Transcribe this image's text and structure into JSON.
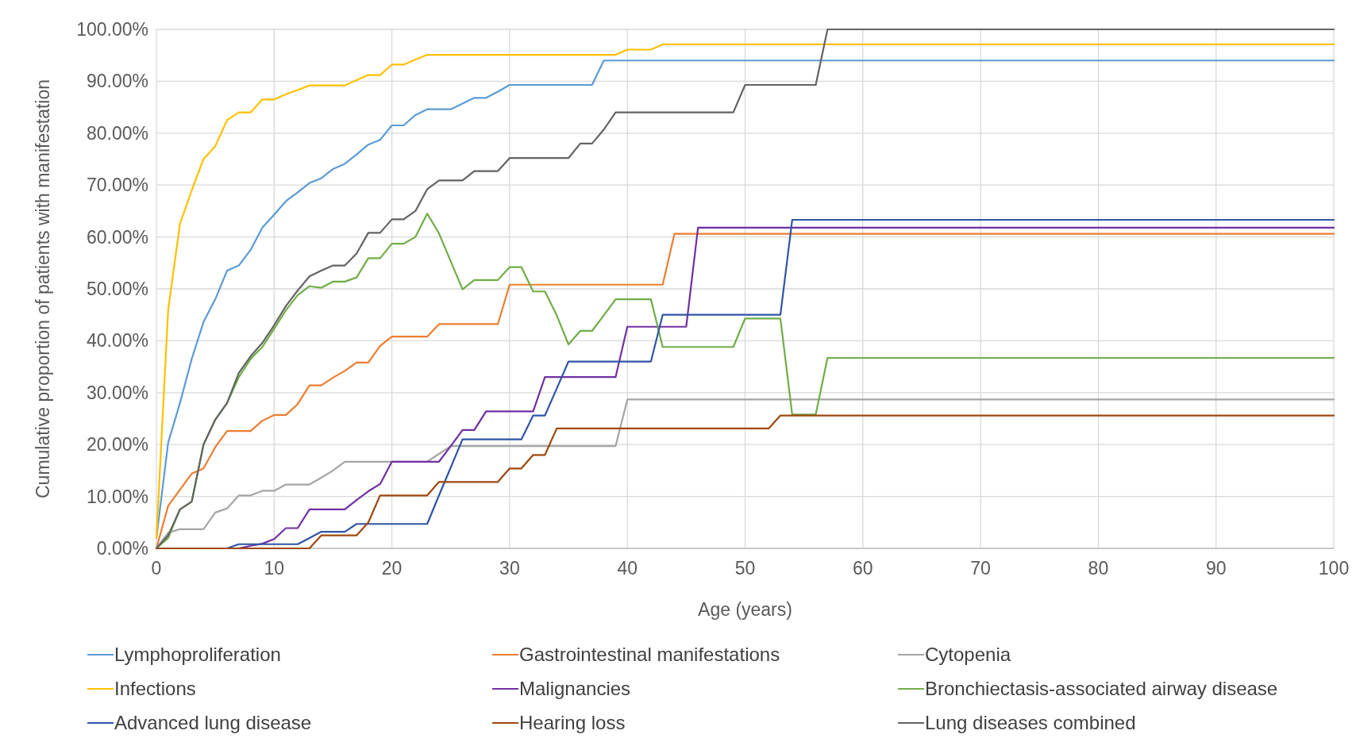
{
  "chart_data": {
    "type": "line",
    "xlabel": "Age (years)",
    "ylabel": "Cumulative proportion of patients with manifestation",
    "x": [
      0,
      1,
      2,
      3,
      4,
      5,
      6,
      7,
      8,
      9,
      10,
      11,
      12,
      13,
      14,
      15,
      16,
      17,
      18,
      19,
      20,
      21,
      22,
      23,
      24,
      25,
      26,
      27,
      28,
      29,
      30,
      31,
      32,
      33,
      34,
      35,
      36,
      37,
      38,
      39,
      40,
      41,
      42,
      43,
      44,
      45,
      46,
      47,
      48,
      49,
      50,
      51,
      52,
      53,
      54,
      55,
      56,
      57,
      100
    ],
    "xlim": [
      0,
      100
    ],
    "xticks": [
      0,
      10,
      20,
      30,
      40,
      50,
      60,
      70,
      80,
      90,
      100
    ],
    "ylim": [
      0,
      100
    ],
    "yticks": [
      {
        "value": 0,
        "label": "0.00%"
      },
      {
        "value": 10,
        "label": "10.00%"
      },
      {
        "value": 20,
        "label": "20.00%"
      },
      {
        "value": 30,
        "label": "30.00%"
      },
      {
        "value": 40,
        "label": "40.00%"
      },
      {
        "value": 50,
        "label": "50.00%"
      },
      {
        "value": 60,
        "label": "60.00%"
      },
      {
        "value": 70,
        "label": "70.00%"
      },
      {
        "value": 80,
        "label": "80.00%"
      },
      {
        "value": 90,
        "label": "90.00%"
      },
      {
        "value": 100,
        "label": "100.00%"
      }
    ],
    "grid": true,
    "legend": "bottom",
    "marker": "none",
    "line_style": "solid",
    "series": [
      {
        "name": "Lymphoproliferation",
        "color": "#5b9bd5",
        "values": [
          2,
          20.4,
          28,
          36.5,
          43.6,
          48,
          53.5,
          54.5,
          57.5,
          61.8,
          64.3,
          66.9,
          68.6,
          70.4,
          71.3,
          73.1,
          74.1,
          75.9,
          77.8,
          78.7,
          81.5,
          81.5,
          83.5,
          84.6,
          84.6,
          84.6,
          85.7,
          86.8,
          86.8,
          88,
          89.3,
          89.3,
          89.3,
          89.3,
          89.3,
          89.3,
          89.3,
          89.3,
          94,
          94,
          94,
          94,
          94,
          94,
          94,
          94,
          94,
          94,
          94,
          94,
          94,
          94,
          94,
          94,
          94,
          94,
          94,
          94,
          94
        ]
      },
      {
        "name": "Gastrointestinal manifestations",
        "color": "#ed7d31",
        "values": [
          0,
          8.2,
          11.3,
          14.4,
          15.4,
          19.5,
          22.6,
          22.6,
          22.6,
          24.6,
          25.7,
          25.7,
          27.8,
          31.4,
          31.4,
          32.9,
          34.2,
          35.8,
          35.8,
          39,
          40.8,
          40.8,
          40.8,
          40.8,
          43.2,
          43.2,
          43.2,
          43.2,
          43.2,
          43.2,
          50.8,
          50.8,
          50.8,
          50.8,
          50.8,
          50.8,
          50.8,
          50.8,
          50.8,
          50.8,
          50.8,
          50.8,
          50.8,
          50.8,
          60.6,
          60.6,
          60.6,
          60.6,
          60.6,
          60.6,
          60.6,
          60.6,
          60.6,
          60.6,
          60.6,
          60.6,
          60.6,
          60.6,
          60.6
        ]
      },
      {
        "name": "Cytopenia",
        "color": "#a5a5a5",
        "values": [
          0,
          3,
          3.7,
          3.7,
          3.7,
          6.9,
          7.7,
          10.2,
          10.2,
          11.1,
          11.1,
          12.3,
          12.3,
          12.3,
          13.6,
          15,
          16.7,
          16.7,
          16.7,
          16.7,
          16.7,
          16.7,
          16.7,
          16.7,
          18.2,
          19.7,
          19.7,
          19.7,
          19.7,
          19.7,
          19.7,
          19.7,
          19.7,
          19.7,
          19.7,
          19.7,
          19.7,
          19.7,
          19.7,
          19.7,
          28.7,
          28.7,
          28.7,
          28.7,
          28.7,
          28.7,
          28.7,
          28.7,
          28.7,
          28.7,
          28.7,
          28.7,
          28.7,
          28.7,
          28.7,
          28.7,
          28.7,
          28.7,
          28.7
        ]
      },
      {
        "name": "Infections",
        "color": "#ffc000",
        "values": [
          2,
          46,
          62.5,
          69,
          75,
          77.5,
          82.5,
          84,
          84,
          86.5,
          86.5,
          87.5,
          88.3,
          89.2,
          89.2,
          89.2,
          89.2,
          90.2,
          91.2,
          91.2,
          93.2,
          93.2,
          94.2,
          95.1,
          95.1,
          95.1,
          95.1,
          95.1,
          95.1,
          95.1,
          95.1,
          95.1,
          95.1,
          95.1,
          95.1,
          95.1,
          95.1,
          95.1,
          95.1,
          95.1,
          96.1,
          96.1,
          96.1,
          97.1,
          97.1,
          97.1,
          97.1,
          97.1,
          97.1,
          97.1,
          97.1,
          97.1,
          97.1,
          97.1,
          97.1,
          97.1,
          97.1,
          97.1,
          97.1
        ]
      },
      {
        "name": "Malignancies",
        "color": "#7030a0",
        "values": [
          null,
          null,
          null,
          null,
          null,
          null,
          0,
          0,
          0.5,
          0.9,
          1.8,
          3.9,
          3.9,
          7.5,
          7.5,
          7.5,
          7.5,
          9.3,
          11,
          12.4,
          16.7,
          16.7,
          16.7,
          16.7,
          16.7,
          19.7,
          22.8,
          22.8,
          26.4,
          26.4,
          26.4,
          26.4,
          26.4,
          33,
          33,
          33,
          33,
          33,
          33,
          33,
          42.7,
          42.7,
          42.7,
          42.7,
          42.7,
          42.7,
          61.8,
          61.8,
          61.8,
          61.8,
          61.8,
          61.8,
          61.8,
          61.8,
          61.8,
          61.8,
          61.8,
          61.8,
          61.8
        ]
      },
      {
        "name": "Bronchiectasis-associated airway disease",
        "color": "#70ad47",
        "values": [
          0,
          2,
          7.5,
          9,
          20,
          24.8,
          28,
          33,
          36.5,
          38.8,
          42.3,
          45.9,
          48.8,
          50.5,
          50.2,
          51.4,
          51.4,
          52.2,
          55.9,
          55.9,
          58.7,
          58.7,
          60,
          64.5,
          60.7,
          55.3,
          49.9,
          51.7,
          51.7,
          51.7,
          54.2,
          54.2,
          49.5,
          49.5,
          44.9,
          39.3,
          41.9,
          41.9,
          44.9,
          48,
          48,
          48,
          48,
          38.8,
          38.8,
          38.8,
          38.8,
          38.8,
          38.8,
          38.8,
          44.3,
          44.3,
          44.3,
          44.3,
          25.8,
          25.8,
          25.8,
          36.7,
          36.7
        ]
      },
      {
        "name": "Advanced lung disease",
        "color": "#2f55a4",
        "values": [
          null,
          null,
          null,
          null,
          null,
          0,
          0,
          0.8,
          0.8,
          0.8,
          0.8,
          0.8,
          0.8,
          2,
          3.2,
          3.2,
          3.2,
          4.7,
          4.7,
          4.7,
          4.7,
          4.7,
          4.7,
          4.7,
          10.2,
          15.6,
          21,
          21,
          21,
          21,
          21,
          21,
          25.6,
          25.6,
          30.8,
          36,
          36,
          36,
          36,
          36,
          36,
          36,
          36,
          45,
          45,
          45,
          45,
          45,
          45,
          45,
          45,
          45,
          45,
          45,
          63.3,
          63.3,
          63.3,
          63.3,
          63.3
        ]
      },
      {
        "name": "Hearing loss",
        "color": "#9e480e",
        "values": [
          0,
          0,
          0,
          0,
          0,
          0,
          0,
          0,
          0,
          0,
          0,
          0,
          0,
          0,
          2.5,
          2.5,
          2.5,
          2.5,
          5,
          10.2,
          10.2,
          10.2,
          10.2,
          10.2,
          12.8,
          12.8,
          12.8,
          12.8,
          12.8,
          12.8,
          15.4,
          15.4,
          18,
          18,
          23.1,
          23.1,
          23.1,
          23.1,
          23.1,
          23.1,
          23.1,
          23.1,
          23.1,
          23.1,
          23.1,
          23.1,
          23.1,
          23.1,
          23.1,
          23.1,
          23.1,
          23.1,
          23.1,
          25.6,
          25.6,
          25.6,
          25.6,
          25.6,
          25.6
        ]
      },
      {
        "name": "Lung diseases combined",
        "color": "#636363",
        "values": [
          0,
          2.5,
          7.5,
          9,
          20,
          24.8,
          28,
          33.8,
          37,
          39.6,
          43,
          46.7,
          49.7,
          52.4,
          53.5,
          54.5,
          54.5,
          56.8,
          60.8,
          60.8,
          63.4,
          63.4,
          65,
          69.2,
          70.9,
          70.9,
          70.9,
          72.7,
          72.7,
          72.7,
          75.2,
          75.2,
          75.2,
          75.2,
          75.2,
          75.2,
          78,
          78,
          80.7,
          84,
          84,
          84,
          84,
          84,
          84,
          84,
          84,
          84,
          84,
          84,
          89.3,
          89.3,
          89.3,
          89.3,
          89.3,
          89.3,
          89.3,
          100,
          100
        ]
      }
    ]
  }
}
